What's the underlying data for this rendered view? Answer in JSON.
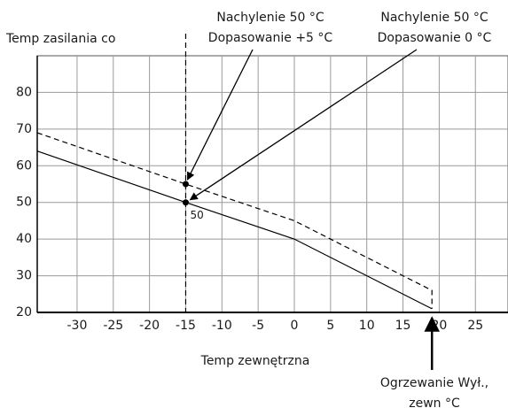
{
  "chart_data": {
    "type": "line",
    "y_label": "Temp zasilania co",
    "x_label": "Temp zewnętrzna",
    "xlim": [
      -35.5,
      29.5
    ],
    "ylim": [
      20,
      90
    ],
    "xticks": [
      -30,
      -25,
      -20,
      -15,
      -10,
      -5,
      0,
      5,
      10,
      15,
      20,
      25
    ],
    "yticks": [
      20,
      30,
      40,
      50,
      60,
      70,
      80
    ],
    "grid": true,
    "reference_x": -15,
    "series": [
      {
        "color": "#000000",
        "dash": false,
        "x": [
          -35.5,
          -15,
          0,
          19
        ],
        "values": [
          64,
          50,
          40,
          21
        ]
      },
      {
        "color": "#000000",
        "dash": true,
        "x": [
          -35.5,
          -15,
          0,
          19,
          19
        ],
        "values": [
          69,
          55,
          45,
          26,
          21
        ]
      }
    ],
    "points": [
      {
        "x": -15,
        "y": 55
      },
      {
        "x": -15,
        "y": 50
      }
    ],
    "annotations": [
      {
        "lines": [
          "Nachylenie 50 °C",
          "Dopasowanie +5 °C"
        ]
      },
      {
        "lines": [
          "Nachylenie 50 °C",
          "Dopasowanie 0 °C"
        ]
      },
      {
        "lines": [
          "Ogrzewanie Wył.,",
          "zewn °C"
        ],
        "x": 19
      }
    ]
  }
}
